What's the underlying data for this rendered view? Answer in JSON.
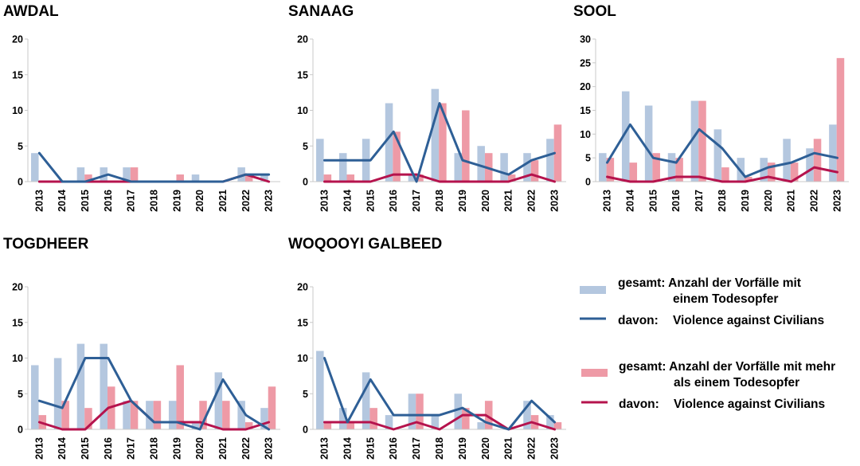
{
  "colors": {
    "bar_single": "#b4c7df",
    "bar_multi": "#ee9aa6",
    "line_single": "#2e5f96",
    "line_multi": "#b5134d",
    "axis": "#c8c8c8"
  },
  "chart_data": [
    {
      "type": "bar",
      "title": "AWDAL",
      "categories": [
        "2013",
        "2014",
        "2015",
        "2016",
        "2017",
        "2018",
        "2019",
        "2020",
        "2021",
        "2022",
        "2023"
      ],
      "ylim": [
        0,
        20
      ],
      "yticks": [
        0,
        5,
        10,
        15,
        20
      ],
      "series": [
        {
          "name": "gesamt: Anzahl der Vorfälle mit einem Todesopfer",
          "kind": "bar",
          "values": [
            4,
            0,
            2,
            2,
            2,
            0,
            0,
            1,
            0,
            2,
            1
          ]
        },
        {
          "name": "gesamt: Anzahl der Vorfälle mit mehr als einem Todesopfer",
          "kind": "bar",
          "values": [
            0,
            0,
            1,
            0,
            2,
            0,
            1,
            0,
            0,
            1,
            0
          ]
        },
        {
          "name": "davon: Violence against Civilians (ein Todesopfer)",
          "kind": "line",
          "values": [
            4,
            0,
            0,
            1,
            0,
            0,
            0,
            0,
            0,
            1,
            1
          ]
        },
        {
          "name": "davon: Violence against Civilians (mehr als ein Todesopfer)",
          "kind": "line",
          "values": [
            0,
            0,
            0,
            0,
            0,
            0,
            0,
            0,
            0,
            1,
            0
          ]
        }
      ]
    },
    {
      "type": "bar",
      "title": "SANAAG",
      "categories": [
        "2013",
        "2014",
        "2015",
        "2016",
        "2017",
        "2018",
        "2019",
        "2020",
        "2021",
        "2022",
        "2023"
      ],
      "ylim": [
        0,
        20
      ],
      "yticks": [
        0,
        5,
        10,
        15,
        20
      ],
      "series": [
        {
          "name": "gesamt: Anzahl der Vorfälle mit einem Todesopfer",
          "kind": "bar",
          "values": [
            6,
            4,
            6,
            11,
            1,
            13,
            4,
            5,
            4,
            4,
            6
          ]
        },
        {
          "name": "gesamt: Anzahl der Vorfälle mit mehr als einem Todesopfer",
          "kind": "bar",
          "values": [
            1,
            1,
            0,
            7,
            1,
            11,
            10,
            4,
            1,
            3,
            8
          ]
        },
        {
          "name": "davon: Violence against Civilians (ein Todesopfer)",
          "kind": "line",
          "values": [
            3,
            3,
            3,
            7,
            0,
            11,
            3,
            2,
            1,
            3,
            4
          ]
        },
        {
          "name": "davon: Violence against Civilians (mehr als ein Todesopfer)",
          "kind": "line",
          "values": [
            0,
            0,
            0,
            1,
            1,
            0,
            0,
            0,
            0,
            1,
            0
          ]
        }
      ]
    },
    {
      "type": "bar",
      "title": "SOOL",
      "categories": [
        "2013",
        "2014",
        "2015",
        "2016",
        "2017",
        "2018",
        "2019",
        "2020",
        "2021",
        "2022",
        "2023"
      ],
      "ylim": [
        0,
        30
      ],
      "yticks": [
        0,
        5,
        10,
        15,
        20,
        25,
        30
      ],
      "series": [
        {
          "name": "gesamt: Anzahl der Vorfälle mit einem Todesopfer",
          "kind": "bar",
          "values": [
            6,
            19,
            16,
            6,
            17,
            11,
            5,
            5,
            9,
            7,
            12
          ]
        },
        {
          "name": "gesamt: Anzahl der Vorfälle mit mehr als einem Todesopfer",
          "kind": "bar",
          "values": [
            5,
            4,
            6,
            5,
            17,
            3,
            1,
            4,
            4,
            9,
            26
          ]
        },
        {
          "name": "davon: Violence against Civilians (ein Todesopfer)",
          "kind": "line",
          "values": [
            4,
            12,
            5,
            4,
            11,
            7,
            1,
            3,
            4,
            6,
            5
          ]
        },
        {
          "name": "davon: Violence against Civilians (mehr als ein Todesopfer)",
          "kind": "line",
          "values": [
            1,
            0,
            0,
            1,
            1,
            0,
            0,
            1,
            0,
            3,
            2
          ]
        }
      ]
    },
    {
      "type": "bar",
      "title": "TOGDHEER",
      "categories": [
        "2013",
        "2014",
        "2015",
        "2016",
        "2017",
        "2018",
        "2019",
        "2020",
        "2021",
        "2022",
        "2023"
      ],
      "ylim": [
        0,
        20
      ],
      "yticks": [
        0,
        5,
        10,
        15,
        20
      ],
      "series": [
        {
          "name": "gesamt: Anzahl der Vorfälle mit einem Todesopfer",
          "kind": "bar",
          "values": [
            9,
            10,
            12,
            12,
            4,
            4,
            4,
            1,
            8,
            4,
            3
          ]
        },
        {
          "name": "gesamt: Anzahl der Vorfälle mit mehr als einem Todesopfer",
          "kind": "bar",
          "values": [
            2,
            4,
            3,
            6,
            4,
            4,
            9,
            4,
            4,
            1,
            6
          ]
        },
        {
          "name": "davon: Violence against Civilians (ein Todesopfer)",
          "kind": "line",
          "values": [
            4,
            3,
            10,
            10,
            4,
            1,
            1,
            0,
            7,
            2,
            0
          ]
        },
        {
          "name": "davon: Violence against Civilians (mehr als ein Todesopfer)",
          "kind": "line",
          "values": [
            1,
            0,
            0,
            3,
            4,
            1,
            1,
            1,
            0,
            0,
            1
          ]
        }
      ]
    },
    {
      "type": "bar",
      "title": "WOQOOYI GALBEED",
      "categories": [
        "2013",
        "2014",
        "2015",
        "2016",
        "2017",
        "2018",
        "2019",
        "2020",
        "2021",
        "2022",
        "2023"
      ],
      "ylim": [
        0,
        20
      ],
      "yticks": [
        0,
        5,
        10,
        15,
        20
      ],
      "series": [
        {
          "name": "gesamt: Anzahl der Vorfälle mit einem Todesopfer",
          "kind": "bar",
          "values": [
            11,
            3,
            8,
            2,
            5,
            2,
            5,
            1,
            0,
            4,
            2
          ]
        },
        {
          "name": "gesamt: Anzahl der Vorfälle mit mehr als einem Todesopfer",
          "kind": "bar",
          "values": [
            1,
            1,
            3,
            0,
            5,
            0,
            3,
            4,
            0,
            2,
            1
          ]
        },
        {
          "name": "davon: Violence against Civilians (ein Todesopfer)",
          "kind": "line",
          "values": [
            10,
            1,
            7,
            2,
            2,
            2,
            3,
            1,
            0,
            4,
            1
          ]
        },
        {
          "name": "davon: Violence against Civilians (mehr als ein Todesopfer)",
          "kind": "line",
          "values": [
            1,
            1,
            1,
            0,
            1,
            0,
            2,
            2,
            0,
            1,
            0
          ]
        }
      ]
    }
  ],
  "legend": {
    "group1": {
      "bar_line1": "gesamt: Anzahl der Vorfälle mit",
      "bar_line2": "einem Todesopfer",
      "line_prefix": "davon:",
      "line_label": "Violence against Civilians"
    },
    "group2": {
      "bar_line1": "gesamt: Anzahl der Vorfälle mit mehr",
      "bar_line2": "als einem Todesopfer",
      "line_prefix": "davon:",
      "line_label": "Violence against Civilians"
    }
  }
}
